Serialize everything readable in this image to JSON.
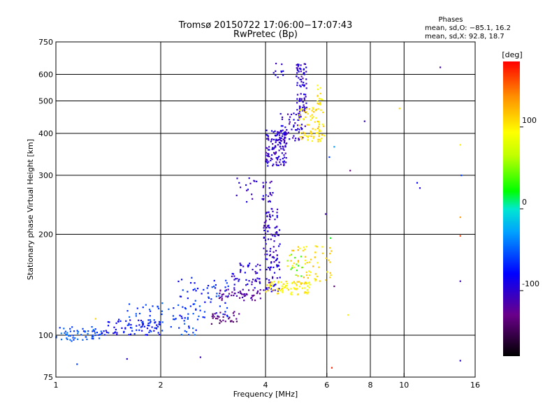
{
  "chart_data": {
    "type": "scatter",
    "title": "Tromsø 20150722 17:06:00−17:07:43",
    "subtitle": "RwPretec (Bp)",
    "xlabel": "Frequency [MHz]",
    "ylabel": "Stationary phase Virtual Height [km]",
    "x_scale": "log",
    "y_scale": "log",
    "xlim": [
      1,
      16
    ],
    "ylim": [
      75,
      750
    ],
    "x_ticks": [
      1,
      2,
      4,
      6,
      8,
      10,
      16
    ],
    "x_grid": [
      2,
      4,
      6,
      8,
      10
    ],
    "y_ticks": [
      75,
      100,
      200,
      300,
      400,
      500,
      600,
      750
    ],
    "y_grid": [
      100,
      200,
      300,
      400,
      500,
      600
    ],
    "grid": true,
    "stats": {
      "heading": "Phases",
      "o_mode": "mean, sd,O: −85.1, 16.2",
      "x_mode": "mean, sd,X:  92.8, 18.7"
    },
    "colorbar": {
      "label": "[deg]",
      "range": [
        -180,
        180
      ],
      "ticks": [
        100,
        0,
        -100
      ]
    },
    "point_groups": [
      {
        "x": [
          1.0,
          1.35
        ],
        "y": [
          96,
          106
        ],
        "phase": -55,
        "n": 60
      },
      {
        "x": [
          1.35,
          2.0
        ],
        "y": [
          100,
          112
        ],
        "phase": -80,
        "n": 70
      },
      {
        "x": [
          1.6,
          2.6
        ],
        "y": [
          100,
          125
        ],
        "phase": -60,
        "n": 70
      },
      {
        "x": [
          2.2,
          3.2
        ],
        "y": [
          112,
          150
        ],
        "phase": -70,
        "n": 60
      },
      {
        "x": [
          2.8,
          3.4
        ],
        "y": [
          108,
          118
        ],
        "phase": -135,
        "n": 30
      },
      {
        "x": [
          2.9,
          3.9
        ],
        "y": [
          127,
          137
        ],
        "phase": -120,
        "n": 50
      },
      {
        "x": [
          3.2,
          3.9
        ],
        "y": [
          135,
          165
        ],
        "phase": -95,
        "n": 50
      },
      {
        "x": [
          3.95,
          4.4
        ],
        "y": [
          135,
          240
        ],
        "phase": -100,
        "n": 120
      },
      {
        "x": [
          3.9,
          4.2
        ],
        "y": [
          250,
          290
        ],
        "phase": -100,
        "n": 20
      },
      {
        "x": [
          4.0,
          4.6
        ],
        "y": [
          320,
          410
        ],
        "phase": -100,
        "n": 130
      },
      {
        "x": [
          4.4,
          5.2
        ],
        "y": [
          380,
          460
        ],
        "phase": -100,
        "n": 60
      },
      {
        "x": [
          4.9,
          5.25
        ],
        "y": [
          460,
          650
        ],
        "phase": -100,
        "n": 80
      },
      {
        "x": [
          4.2,
          4.5
        ],
        "y": [
          580,
          650
        ],
        "phase": -100,
        "n": 10
      },
      {
        "x": [
          3.15,
          3.8
        ],
        "y": [
          250,
          295
        ],
        "phase": -100,
        "n": 15
      },
      {
        "x": [
          4.0,
          5.4
        ],
        "y": [
          132,
          145
        ],
        "phase": 100,
        "n": 80
      },
      {
        "x": [
          4.6,
          6.2
        ],
        "y": [
          145,
          185
        ],
        "phase": 110,
        "n": 60
      },
      {
        "x": [
          5.0,
          5.9
        ],
        "y": [
          375,
          480
        ],
        "phase": 105,
        "n": 80
      },
      {
        "x": [
          5.6,
          5.85
        ],
        "y": [
          480,
          560
        ],
        "phase": 100,
        "n": 15
      },
      {
        "x": [
          4.6,
          5.4
        ],
        "y": [
          150,
          175
        ],
        "phase": 40,
        "n": 12
      }
    ],
    "isolated_points": [
      {
        "x": 6.2,
        "y": 80,
        "phase": 170
      },
      {
        "x": 6.3,
        "y": 140,
        "phase": -140
      },
      {
        "x": 6.15,
        "y": 195,
        "phase": 20
      },
      {
        "x": 5.95,
        "y": 230,
        "phase": -110
      },
      {
        "x": 6.1,
        "y": 340,
        "phase": -60
      },
      {
        "x": 6.3,
        "y": 365,
        "phase": -30
      },
      {
        "x": 7.0,
        "y": 310,
        "phase": -130
      },
      {
        "x": 7.7,
        "y": 435,
        "phase": -100
      },
      {
        "x": 6.9,
        "y": 115,
        "phase": 100
      },
      {
        "x": 9.7,
        "y": 475,
        "phase": 110
      },
      {
        "x": 10.9,
        "y": 285,
        "phase": -80
      },
      {
        "x": 11.1,
        "y": 275,
        "phase": -90
      },
      {
        "x": 12.7,
        "y": 630,
        "phase": -110
      },
      {
        "x": 14.5,
        "y": 370,
        "phase": 100
      },
      {
        "x": 14.5,
        "y": 225,
        "phase": 130
      },
      {
        "x": 14.5,
        "y": 198,
        "phase": 160
      },
      {
        "x": 14.5,
        "y": 145,
        "phase": -110
      },
      {
        "x": 14.5,
        "y": 84,
        "phase": -100
      },
      {
        "x": 14.6,
        "y": 300,
        "phase": -60
      },
      {
        "x": 1.6,
        "y": 85,
        "phase": -90
      },
      {
        "x": 2.6,
        "y": 86,
        "phase": -110
      },
      {
        "x": 1.15,
        "y": 82,
        "phase": -60
      },
      {
        "x": 1.3,
        "y": 112,
        "phase": 110
      },
      {
        "x": 3.15,
        "y": 113,
        "phase": -150
      }
    ]
  }
}
